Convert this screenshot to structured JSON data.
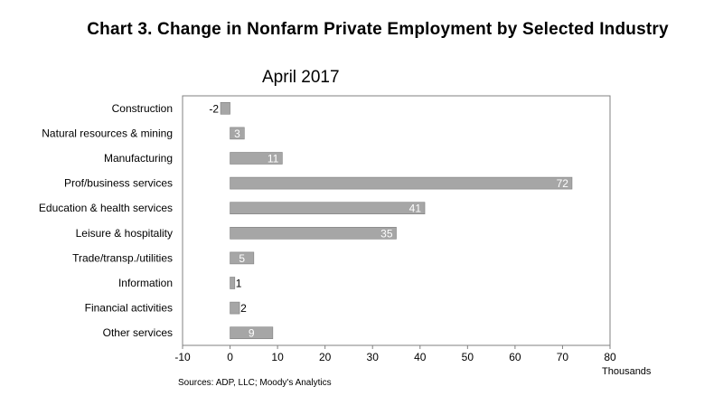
{
  "title": "Chart 3. Change in Nonfarm Private Employment by Selected Industry",
  "subtitle": "April 2017",
  "source": "Sources: ADP, LLC; Moody's Analytics",
  "chart_data": {
    "type": "bar",
    "orientation": "horizontal",
    "title": "Chart 3. Change in Nonfarm Private Employment by Selected Industry",
    "subtitle": "April 2017",
    "categories": [
      "Construction",
      "Natural resources & mining",
      "Manufacturing",
      "Prof/business services",
      "Education & health services",
      "Leisure & hospitality",
      "Trade/transp./utilities",
      "Information",
      "Financial activities",
      "Other services"
    ],
    "values": [
      -2,
      3,
      11,
      72,
      41,
      35,
      5,
      1,
      2,
      9
    ],
    "xlabel": "Thousands",
    "ylabel": "",
    "xlim": [
      -10,
      80
    ],
    "xticks": [
      -10,
      0,
      10,
      20,
      30,
      40,
      50,
      60,
      70,
      80
    ],
    "grid": false,
    "colors": {
      "bar": "#a6a6a6",
      "bar_stroke": "#7f7f7f",
      "frame": "#808080"
    }
  }
}
